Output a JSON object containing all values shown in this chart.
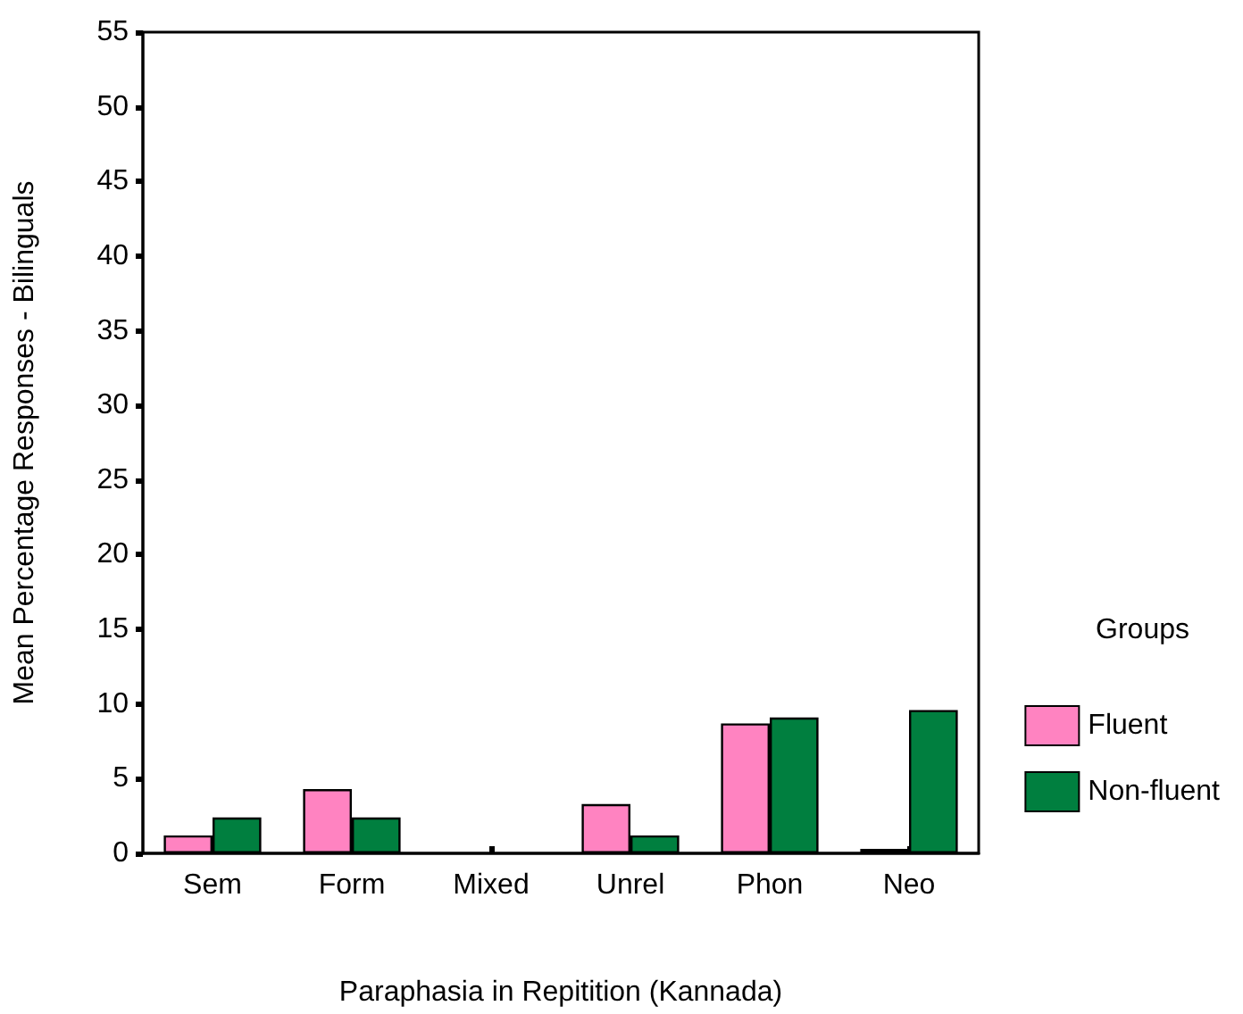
{
  "chart_data": {
    "type": "bar",
    "xlabel": "Paraphasia in Repitition (Kannada)",
    "ylabel": "Mean Percentage Responses - Bilinguals",
    "categories": [
      "Sem",
      "Form",
      "Mixed",
      "Unrel",
      "Phon",
      "Neo"
    ],
    "series": [
      {
        "name": "Fluent",
        "color": "#ff83c1",
        "values": [
          1.2,
          4.3,
          0,
          3.3,
          8.7,
          0.3
        ]
      },
      {
        "name": "Non-fluent",
        "color": "#007f3f",
        "values": [
          2.4,
          2.4,
          0,
          1.2,
          9.1,
          9.6
        ]
      }
    ],
    "ylim": [
      0,
      55
    ],
    "yticks": [
      0,
      5,
      10,
      15,
      20,
      25,
      30,
      35,
      40,
      45,
      50,
      55
    ],
    "legend": "right",
    "legend_title": "Groups",
    "grid": false
  }
}
